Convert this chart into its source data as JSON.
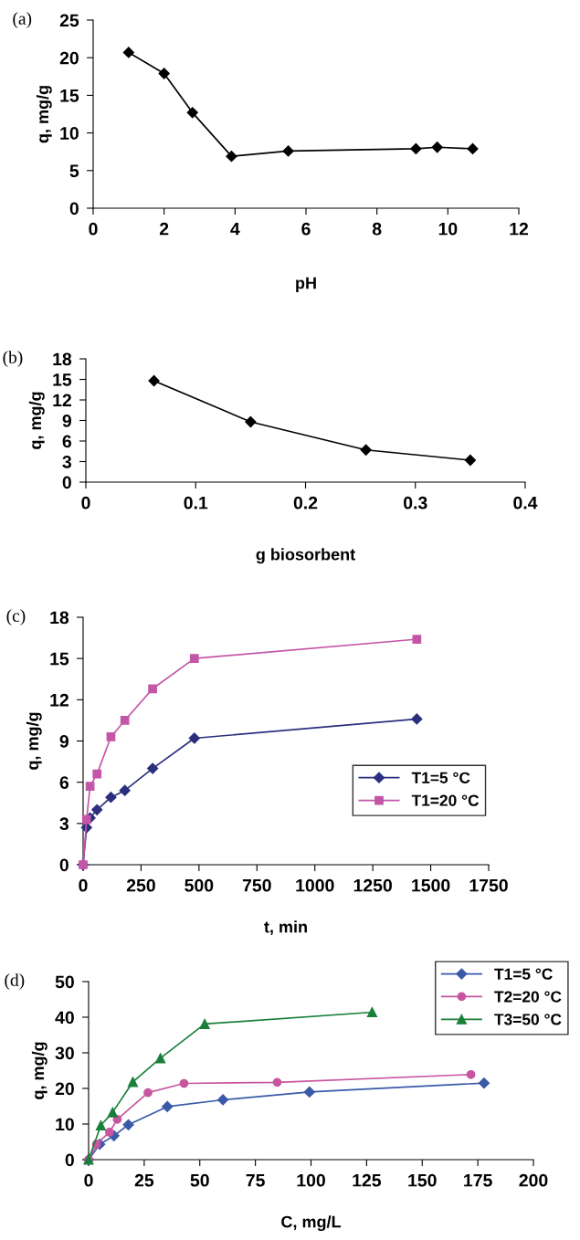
{
  "chart_data": [
    {
      "type": "line",
      "title": "(a)",
      "xlabel": "pH",
      "ylabel": "q, mg/g",
      "x": [
        1,
        2,
        2.8,
        3.9,
        5.5,
        9.1,
        9.7,
        10.7
      ],
      "series": [
        {
          "color": "#000000",
          "marker": "diamond",
          "values": [
            20.7,
            17.9,
            12.7,
            6.9,
            7.6,
            7.9,
            8.1,
            7.9
          ]
        }
      ],
      "xlim": [
        0,
        12
      ],
      "xticks": [
        0,
        2,
        4,
        6,
        8,
        10,
        12
      ],
      "ylim": [
        0,
        25
      ],
      "yticks": [
        0,
        5,
        10,
        15,
        20,
        25
      ],
      "grid": false,
      "legend": false,
      "line_style": "solid"
    },
    {
      "type": "line",
      "title": "(b)",
      "xlabel": "g biosorbent",
      "ylabel": "q, mg/g",
      "x": [
        0.062,
        0.15,
        0.255,
        0.35
      ],
      "series": [
        {
          "color": "#000000",
          "marker": "diamond",
          "values": [
            14.8,
            8.8,
            4.7,
            3.2
          ]
        }
      ],
      "xlim": [
        0,
        0.4
      ],
      "xticks": [
        0,
        0.1,
        0.2,
        0.3,
        0.4
      ],
      "ylim": [
        0,
        18
      ],
      "yticks": [
        0,
        3,
        6,
        9,
        12,
        15,
        18
      ],
      "grid": false,
      "legend": false,
      "line_style": "solid"
    },
    {
      "type": "line",
      "title": "(c)",
      "xlabel": "t, min",
      "ylabel": "q, mg/g",
      "x": [
        0,
        15,
        30,
        60,
        120,
        180,
        300,
        480,
        1440
      ],
      "series": [
        {
          "name": "T1=5 °C",
          "color": "#2b2f7e",
          "marker": "diamond",
          "values": [
            0,
            2.7,
            3.4,
            4.0,
            4.9,
            5.4,
            7.0,
            9.2,
            10.6
          ]
        },
        {
          "name": "T1=20 °C",
          "color": "#c456a8",
          "marker": "square",
          "values": [
            0,
            3.3,
            5.7,
            6.6,
            9.3,
            10.5,
            12.8,
            15.0,
            16.4
          ]
        }
      ],
      "xlim": [
        0,
        1750
      ],
      "xticks": [
        0,
        250,
        500,
        750,
        1000,
        1250,
        1500,
        1750
      ],
      "ylim": [
        0,
        18
      ],
      "yticks": [
        0,
        3,
        6,
        9,
        12,
        15,
        18
      ],
      "grid": false,
      "legend": "right",
      "line_style": "solid"
    },
    {
      "type": "line",
      "title": "(d)",
      "xlabel": "C, mg/L",
      "ylabel": "q, mg/g",
      "series": [
        {
          "name": "T1=5 °C",
          "color": "#3a5aa8",
          "marker": "diamond",
          "x": [
            0,
            5,
            11.4,
            17.9,
            35.4,
            60.4,
            99.3,
            177.8
          ],
          "values": [
            0,
            4.3,
            6.7,
            9.8,
            14.9,
            16.8,
            19.0,
            21.5
          ]
        },
        {
          "name": "T2=20 °C",
          "color": "#c8559f",
          "marker": "circle",
          "x": [
            0,
            3.5,
            9.4,
            12.9,
            26.7,
            42.9,
            84.8,
            171.9
          ],
          "values": [
            0,
            4.3,
            7.7,
            11.3,
            18.8,
            21.4,
            21.7,
            23.9
          ]
        },
        {
          "name": "T3=50 °C",
          "color": "#1a7f3a",
          "marker": "triangle",
          "x": [
            0,
            5.5,
            10.8,
            19.9,
            32.3,
            52.2,
            127.5
          ],
          "values": [
            0,
            9.6,
            13.3,
            21.8,
            28.5,
            38.1,
            41.4
          ]
        }
      ],
      "xlim": [
        0,
        200
      ],
      "xticks": [
        0,
        25,
        50,
        75,
        100,
        125,
        150,
        175,
        200
      ],
      "ylim": [
        0,
        50
      ],
      "yticks": [
        0,
        10,
        20,
        30,
        40,
        50
      ],
      "grid": false,
      "legend": "top right",
      "line_style": "solid"
    }
  ]
}
